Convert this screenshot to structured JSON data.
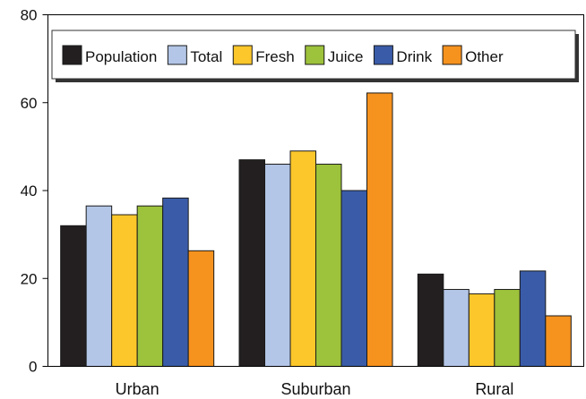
{
  "chart_data": {
    "type": "bar",
    "categories": [
      "Urban",
      "Suburban",
      "Rural"
    ],
    "series": [
      {
        "name": "Population",
        "color": "#231f20",
        "values": [
          32,
          47,
          21
        ]
      },
      {
        "name": "Total",
        "color": "#b3c6e7",
        "values": [
          36.5,
          46,
          17.5
        ]
      },
      {
        "name": "Fresh",
        "color": "#fcc72b",
        "values": [
          34.5,
          49,
          16.5
        ]
      },
      {
        "name": "Juice",
        "color": "#9dc23b",
        "values": [
          36.5,
          46,
          17.5
        ]
      },
      {
        "name": "Drink",
        "color": "#3a5ca8",
        "values": [
          38.3,
          40,
          21.7
        ]
      },
      {
        "name": "Other",
        "color": "#f6921e",
        "values": [
          26.3,
          62.2,
          11.5
        ]
      }
    ],
    "yticks": [
      "0",
      "20",
      "40",
      "60",
      "80"
    ],
    "ylim": [
      0,
      80
    ],
    "grid": false,
    "legend_position": "top",
    "title": "",
    "xlabel": "",
    "ylabel": ""
  }
}
